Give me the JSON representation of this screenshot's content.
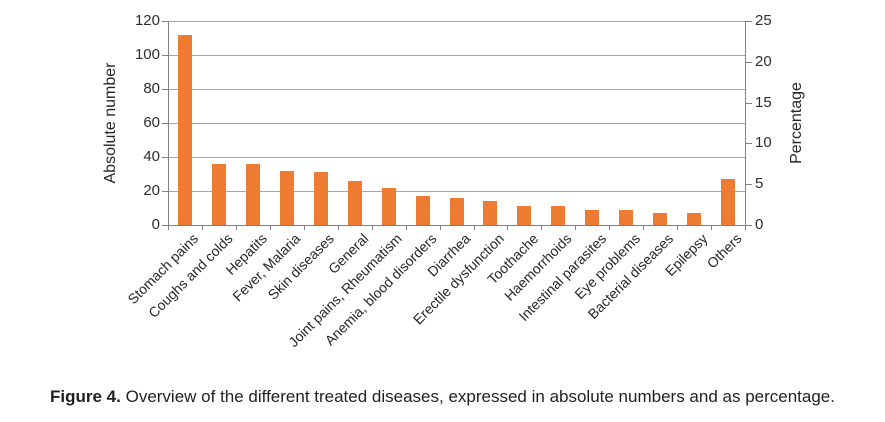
{
  "chart_data": {
    "type": "bar",
    "title": "",
    "categories": [
      "Stomach pains",
      "Coughs and colds",
      "Hepatits",
      "Fever, Malaria",
      "Skin diseases",
      "General",
      "Joint pains, Rheumatism",
      "Anemia, blood disorders",
      "Diarrhea",
      "Erectile dysfunction",
      "Toothache",
      "Haemorrhoids",
      "Intestinal parasites",
      "Eye problems",
      "Bacterial diseases",
      "Epilepsy",
      "Others"
    ],
    "values": [
      112,
      36,
      36,
      32,
      31,
      26,
      22,
      17,
      16,
      14,
      11,
      11,
      9,
      9,
      7,
      7,
      27
    ],
    "left_axis": {
      "label": "Absolute number",
      "ticks": [
        0,
        20,
        40,
        60,
        80,
        100,
        120
      ],
      "range": [
        0,
        120
      ]
    },
    "right_axis": {
      "label": "Percentage",
      "ticks": [
        0,
        5,
        10,
        15,
        20,
        25
      ],
      "range": [
        0,
        25
      ]
    },
    "bar_color": "#ed7b31",
    "grid": true,
    "legend": "none"
  },
  "caption": {
    "fig_label": "Figure 4.",
    "text": "Overview of the different treated diseases, expressed in absolute numbers and as percentage."
  }
}
